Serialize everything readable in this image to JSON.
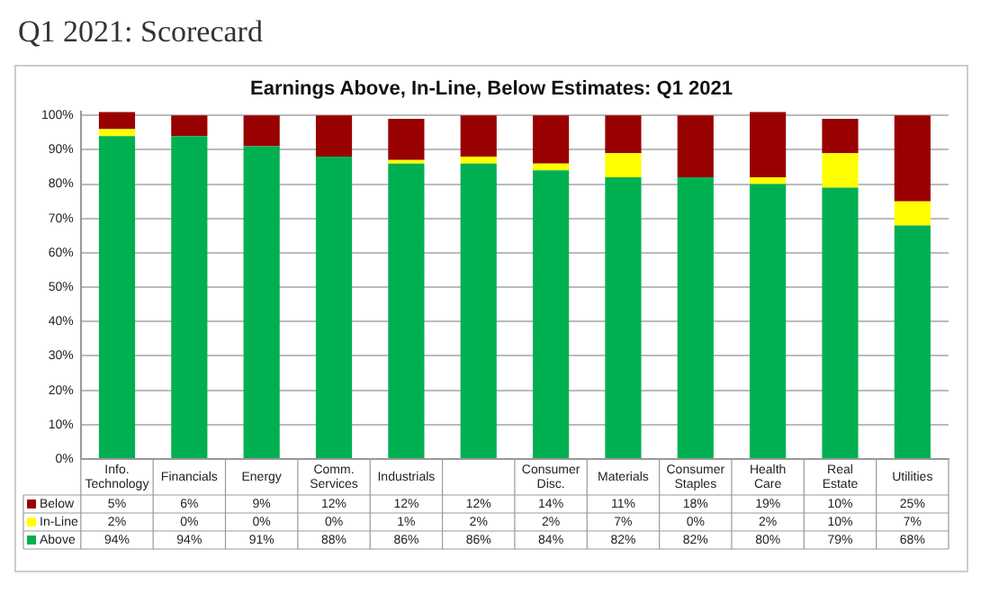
{
  "chart_data": {
    "type": "bar",
    "title": "Q1 2021: Scorecard",
    "subtitle": "Earnings Above, In-Line, Below Estimates: Q1 2021",
    "categories": [
      "Info. Technology",
      "Financials",
      "Energy",
      "Comm. Services",
      "Industrials",
      null,
      "Consumer Disc.",
      "Materials",
      "Consumer Staples",
      "Health Care",
      "Real Estate",
      "Utilities"
    ],
    "stacked": true,
    "series": [
      {
        "name": "Above",
        "color": "#00b050",
        "values": [
          94,
          94,
          91,
          88,
          86,
          86,
          84,
          82,
          82,
          80,
          79,
          68
        ],
        "value_labels": [
          "94%",
          "94%",
          "91%",
          "88%",
          "86%",
          "86%",
          "84%",
          "82%",
          "82%",
          "80%",
          "79%",
          "68%"
        ]
      },
      {
        "name": "In-Line",
        "color": "#ffff00",
        "values": [
          2,
          0,
          0,
          0,
          1,
          2,
          2,
          7,
          0,
          2,
          10,
          7
        ],
        "value_labels": [
          "2%",
          "0%",
          "0%",
          "0%",
          "1%",
          "2%",
          "2%",
          "7%",
          "0%",
          "2%",
          "10%",
          "7%"
        ]
      },
      {
        "name": "Below",
        "color": "#990000",
        "values": [
          5,
          6,
          9,
          12,
          12,
          12,
          14,
          11,
          18,
          19,
          10,
          25
        ],
        "value_labels": [
          "5%",
          "6%",
          "9%",
          "12%",
          "12%",
          "12%",
          "14%",
          "11%",
          "18%",
          "19%",
          "10%",
          "25%"
        ]
      }
    ],
    "ylim": [
      0,
      101
    ],
    "yticks": [
      {
        "value": 0,
        "label": "0%"
      },
      {
        "value": 10,
        "label": "10%"
      },
      {
        "value": 20,
        "label": "20%"
      },
      {
        "value": 30,
        "label": "30%"
      },
      {
        "value": 40,
        "label": "40%"
      },
      {
        "value": 50,
        "label": "50%"
      },
      {
        "value": 60,
        "label": "60%"
      },
      {
        "value": 70,
        "label": "70%"
      },
      {
        "value": 80,
        "label": "80%"
      },
      {
        "value": 90,
        "label": "90%"
      },
      {
        "value": 100,
        "label": "100%"
      }
    ],
    "grid": "y",
    "legend": "bottom"
  }
}
